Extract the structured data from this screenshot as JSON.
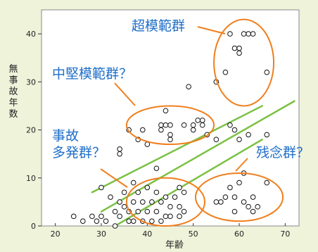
{
  "chart_data": {
    "type": "scatter",
    "xlabel": "年齢",
    "ylabel": "無事故年数",
    "xlim": [
      17,
      73
    ],
    "ylim": [
      0,
      45
    ],
    "x_ticks": [
      20,
      30,
      40,
      50,
      60,
      70
    ],
    "y_ticks": [
      0,
      10,
      20,
      30,
      40
    ],
    "grid": false,
    "series": [
      {
        "values": [
          [
            24,
            2
          ],
          [
            26,
            1
          ],
          [
            28,
            2
          ],
          [
            29,
            1
          ],
          [
            30,
            8
          ],
          [
            30,
            2
          ],
          [
            31,
            1
          ],
          [
            32,
            6
          ],
          [
            33,
            3
          ],
          [
            33,
            0
          ],
          [
            34,
            2
          ],
          [
            34,
            5
          ],
          [
            35,
            4
          ],
          [
            35,
            7
          ],
          [
            36,
            3
          ],
          [
            36,
            1
          ],
          [
            37,
            9
          ],
          [
            37,
            5
          ],
          [
            37,
            1
          ],
          [
            38,
            3
          ],
          [
            38,
            7
          ],
          [
            39,
            5
          ],
          [
            39,
            1
          ],
          [
            40,
            3
          ],
          [
            40,
            8
          ],
          [
            41,
            5
          ],
          [
            42,
            12
          ],
          [
            42,
            3
          ],
          [
            42,
            7
          ],
          [
            43,
            1
          ],
          [
            43,
            5
          ],
          [
            44,
            6
          ],
          [
            45,
            2
          ],
          [
            45,
            4
          ],
          [
            46,
            6
          ],
          [
            47,
            4
          ],
          [
            47,
            8
          ],
          [
            48,
            7
          ],
          [
            48,
            3
          ],
          [
            47,
            2
          ],
          [
            41,
            1
          ],
          [
            44,
            2
          ],
          [
            34,
            16
          ],
          [
            34,
            15
          ],
          [
            36,
            20
          ],
          [
            38,
            18
          ],
          [
            39,
            20
          ],
          [
            40,
            17
          ],
          [
            43,
            21
          ],
          [
            43,
            20
          ],
          [
            44,
            24
          ],
          [
            44,
            21
          ],
          [
            45,
            21
          ],
          [
            45,
            19
          ],
          [
            45,
            18
          ],
          [
            48,
            21
          ],
          [
            50,
            21
          ],
          [
            50,
            20
          ],
          [
            51,
            22
          ],
          [
            52,
            21
          ],
          [
            52,
            22
          ],
          [
            53,
            19
          ],
          [
            49,
            29
          ],
          [
            55,
            5
          ],
          [
            56,
            5
          ],
          [
            57,
            6
          ],
          [
            58,
            8
          ],
          [
            59,
            6
          ],
          [
            59,
            3
          ],
          [
            60,
            9
          ],
          [
            61,
            11
          ],
          [
            61,
            5
          ],
          [
            62,
            4
          ],
          [
            63,
            6
          ],
          [
            63,
            3
          ],
          [
            64,
            4
          ],
          [
            66,
            9
          ],
          [
            55,
            18
          ],
          [
            58,
            21
          ],
          [
            59,
            20
          ],
          [
            60,
            18
          ],
          [
            62,
            19
          ],
          [
            66,
            19
          ],
          [
            55,
            30
          ],
          [
            57,
            32
          ],
          [
            58,
            40
          ],
          [
            59,
            37
          ],
          [
            60,
            36
          ],
          [
            60,
            37
          ],
          [
            61,
            40
          ],
          [
            62,
            40
          ],
          [
            63,
            40
          ],
          [
            66,
            32
          ]
        ]
      }
    ],
    "regression_lines": [
      {
        "from": [
          28,
          7
        ],
        "to": [
          65,
          25
        ]
      },
      {
        "from": [
          30,
          3
        ],
        "to": [
          72,
          26
        ]
      },
      {
        "from": [
          33,
          0
        ],
        "to": [
          65,
          18
        ]
      }
    ],
    "annotations": [
      {
        "text": "超模範群",
        "color": "#1f6fc8"
      },
      {
        "text": "中堅模範群？",
        "color": "#1f6fc8"
      },
      {
        "text": "事故",
        "color": "#1f6fc8"
      },
      {
        "text": "多発群？",
        "color": "#1f6fc8"
      },
      {
        "text": "残念群？",
        "color": "#1f6fc8"
      }
    ],
    "highlight_ellipses": [
      {
        "cx": 61,
        "cy": 34,
        "rx": 6.5,
        "ry": 9
      },
      {
        "cx": 45,
        "cy": 21,
        "rx": 9.5,
        "ry": 4
      },
      {
        "cx": 44,
        "cy": 5,
        "rx": 8.5,
        "ry": 5
      },
      {
        "cx": 60,
        "cy": 6,
        "rx": 9.5,
        "ry": 5
      }
    ]
  },
  "colors": {
    "background": "#eef3da",
    "plot_background": "#ffffff",
    "regression_line": "#7ac143",
    "ellipse": "#f07f1e",
    "annotation_text": "#1f6fc8",
    "marker": "#111111"
  }
}
